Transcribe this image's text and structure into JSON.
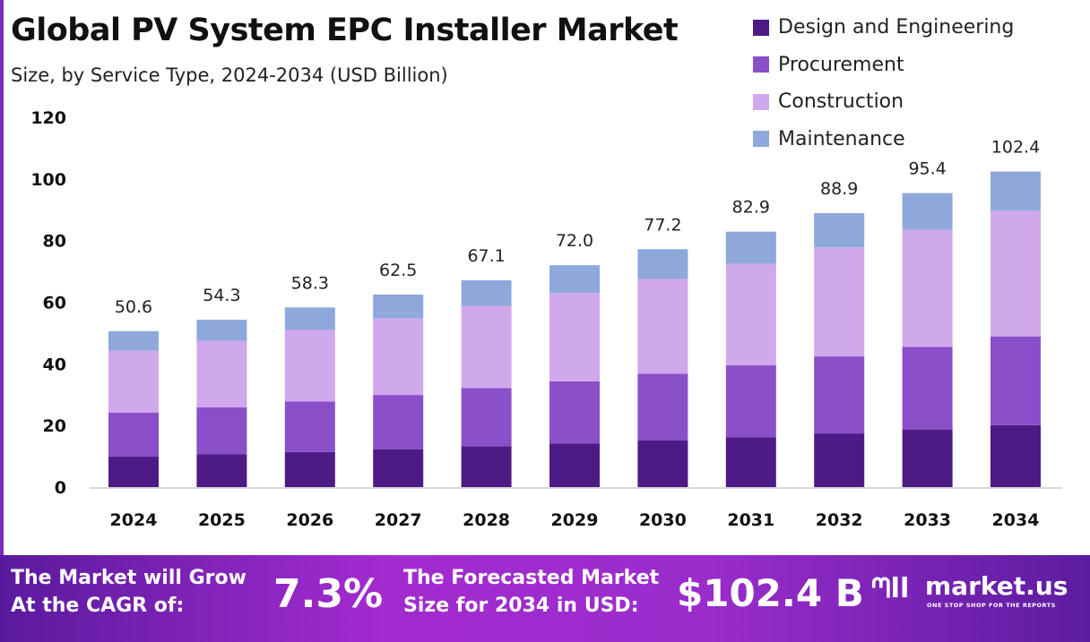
{
  "title": "Global PV System EPC Installer Market",
  "subtitle": "Size, by Service Type, 2024-2034 (USD Billion)",
  "chart_data": {
    "type": "bar",
    "stacked": true,
    "categories": [
      "2024",
      "2025",
      "2026",
      "2027",
      "2028",
      "2029",
      "2030",
      "2031",
      "2032",
      "2033",
      "2034"
    ],
    "series": [
      {
        "name": "Design and Engineering",
        "color": "#4e1a85",
        "values": [
          9.9,
          10.6,
          11.4,
          12.3,
          13.2,
          14.1,
          15.1,
          16.2,
          17.4,
          18.7,
          20.1
        ]
      },
      {
        "name": "Procurement",
        "color": "#8a4fc9",
        "values": [
          14.3,
          15.3,
          16.4,
          17.6,
          18.9,
          20.2,
          21.7,
          23.3,
          25.0,
          26.8,
          28.8
        ]
      },
      {
        "name": "Construction",
        "color": "#d0a8ec",
        "values": [
          20.1,
          21.6,
          23.2,
          24.9,
          26.7,
          28.7,
          30.7,
          33.0,
          35.4,
          38.0,
          40.8
        ]
      },
      {
        "name": "Maintenance",
        "color": "#8ea8dc",
        "values": [
          6.3,
          6.8,
          7.3,
          7.7,
          8.3,
          9.0,
          9.7,
          10.4,
          11.1,
          11.9,
          12.7
        ]
      }
    ],
    "totals": [
      "50.6",
      "54.3",
      "58.3",
      "62.5",
      "67.1",
      "72.0",
      "77.2",
      "82.9",
      "88.9",
      "95.4",
      "102.4"
    ],
    "yticks": [
      "0",
      "20",
      "40",
      "60",
      "80",
      "100",
      "120"
    ],
    "ylim": [
      0,
      120
    ],
    "grid": false,
    "legend": "top-right"
  },
  "footer": {
    "cagr_label_1": "The Market will Grow",
    "cagr_label_2": "At the CAGR of:",
    "cagr_value": "7.3%",
    "forecast_label_1": "The Forecasted Market",
    "forecast_label_2": "Size for 2034 in USD:",
    "forecast_value": "$102.4 B",
    "brand": "market.us",
    "brand_tagline": "ONE STOP SHOP FOR THE REPORTS"
  }
}
